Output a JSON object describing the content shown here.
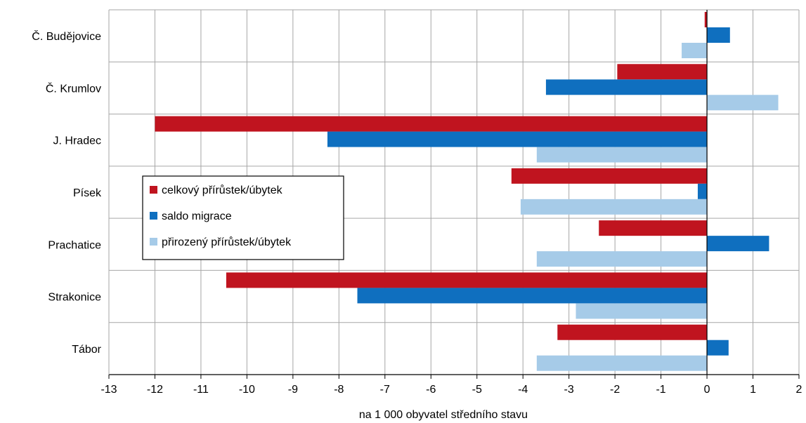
{
  "chart_data": {
    "type": "bar",
    "orientation": "horizontal",
    "categories": [
      "Č. Budějovice",
      "Č. Krumlov",
      "J. Hradec",
      "Písek",
      "Prachatice",
      "Strakonice",
      "Tábor"
    ],
    "series": [
      {
        "name": "celkový přírůstek/úbytek",
        "color": "#c0141f",
        "values": [
          -0.05,
          -1.95,
          -12.0,
          -4.25,
          -2.35,
          -10.45,
          -3.25
        ]
      },
      {
        "name": "saldo migrace",
        "color": "#0f6fbf",
        "values": [
          0.5,
          -3.5,
          -8.25,
          -0.2,
          1.35,
          -7.6,
          0.47
        ]
      },
      {
        "name": "přirozený přírůstek/úbytek",
        "color": "#a6cbe8",
        "values": [
          -0.55,
          1.55,
          -3.7,
          -4.05,
          -3.7,
          -2.85,
          -3.7
        ]
      }
    ],
    "xlim": [
      -13,
      2
    ],
    "xticks": [
      -13,
      -12,
      -11,
      -10,
      -9,
      -8,
      -7,
      -6,
      -5,
      -4,
      -3,
      -2,
      -1,
      0,
      1,
      2
    ],
    "xlabel": "na 1 000 obyvatel středního stavu",
    "ylabel": "",
    "title": "",
    "grid": true,
    "legend_position": "center-left"
  }
}
